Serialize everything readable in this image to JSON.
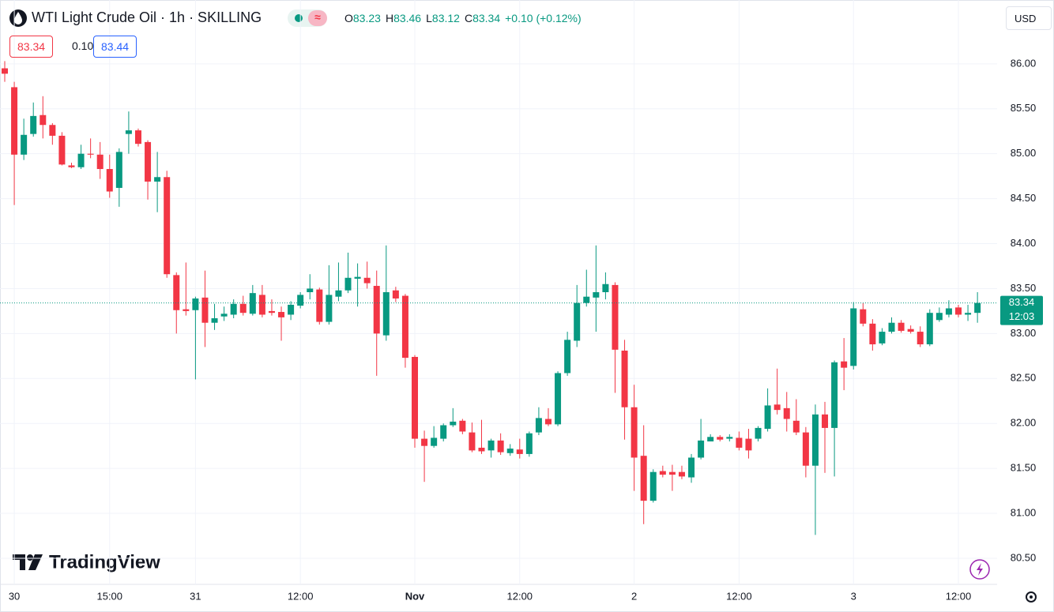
{
  "header": {
    "title": "WTI Light Crude Oil · 1h · SKILLING",
    "ohlc": [
      {
        "key": "O",
        "value": "83.23"
      },
      {
        "key": "H",
        "value": "83.46"
      },
      {
        "key": "L",
        "value": "83.12"
      },
      {
        "key": "C",
        "value": "83.34"
      }
    ],
    "change": "+0.10 (+0.12%)",
    "bid": "83.34",
    "spread": "0.10",
    "ask": "83.44",
    "currency": "USD"
  },
  "watermark": "TradingView",
  "chart_data": {
    "type": "candlestick",
    "up_color": "#089981",
    "down_color": "#f23645",
    "grid": true,
    "x": [
      null,
      "30",
      null,
      null,
      null,
      null,
      null,
      null,
      null,
      null,
      null,
      "15:00",
      null,
      null,
      null,
      null,
      null,
      null,
      null,
      null,
      "31",
      null,
      null,
      null,
      null,
      null,
      null,
      null,
      null,
      null,
      null,
      "12:00",
      null,
      null,
      null,
      null,
      null,
      null,
      null,
      null,
      null,
      null,
      null,
      "Nov",
      null,
      null,
      null,
      null,
      null,
      null,
      null,
      null,
      null,
      null,
      "12:00",
      null,
      null,
      null,
      null,
      null,
      null,
      null,
      null,
      null,
      null,
      null,
      "2",
      null,
      null,
      null,
      null,
      null,
      null,
      null,
      null,
      null,
      null,
      "12:00",
      null,
      null,
      null,
      null,
      null,
      null,
      null,
      null,
      null,
      null,
      null,
      "3",
      null,
      null,
      null,
      null,
      null,
      null,
      null,
      null,
      null,
      null,
      "12:00",
      null,
      null
    ],
    "open": [
      85.95,
      85.74,
      84.99,
      85.22,
      85.43,
      85.32,
      85.2,
      84.87,
      84.85,
      85.0,
      84.99,
      84.83,
      84.62,
      85.22,
      85.26,
      85.13,
      84.69,
      84.74,
      83.65,
      83.27,
      83.26,
      83.4,
      83.12,
      83.19,
      83.21,
      83.33,
      83.22,
      83.43,
      83.25,
      83.24,
      83.21,
      83.31,
      83.46,
      83.49,
      83.13,
      83.41,
      83.48,
      83.61,
      83.62,
      83.53,
      82.98,
      83.48,
      83.42,
      82.74,
      81.83,
      81.75,
      81.83,
      81.98,
      82.03,
      81.9,
      81.73,
      81.7,
      81.81,
      81.67,
      81.71,
      81.66,
      81.9,
      82.05,
      81.99,
      82.56,
      82.92,
      83.34,
      83.4,
      83.46,
      83.54,
      82.81,
      82.18,
      81.64,
      81.14,
      81.47,
      81.46,
      81.46,
      81.4,
      81.62,
      81.8,
      81.85,
      81.83,
      81.84,
      81.83,
      81.83,
      81.94,
      82.21,
      82.17,
      82.03,
      81.9,
      81.53,
      82.1,
      81.95,
      82.69,
      82.64,
      83.27,
      83.11,
      82.89,
      83.02,
      83.12,
      83.05,
      83.02,
      82.88,
      83.15,
      83.21,
      83.29,
      83.21,
      83.23
    ],
    "high": [
      86.03,
      85.8,
      85.39,
      85.57,
      85.64,
      85.34,
      85.24,
      84.9,
      85.1,
      85.17,
      85.13,
      84.99,
      85.06,
      85.47,
      85.28,
      85.15,
      85.02,
      84.81,
      83.68,
      83.79,
      83.41,
      83.7,
      83.33,
      83.3,
      83.38,
      83.42,
      83.54,
      83.54,
      83.38,
      83.3,
      83.36,
      83.46,
      83.66,
      83.51,
      83.76,
      83.79,
      83.9,
      83.78,
      83.8,
      83.7,
      83.98,
      83.52,
      83.44,
      82.76,
      81.92,
      81.97,
      82.0,
      82.17,
      82.05,
      82.01,
      82.04,
      81.83,
      81.89,
      81.77,
      81.83,
      81.91,
      82.18,
      82.17,
      82.58,
      83.02,
      83.54,
      83.71,
      83.98,
      83.68,
      83.57,
      82.93,
      82.43,
      81.98,
      81.49,
      81.53,
      81.54,
      81.53,
      81.66,
      82.05,
      81.88,
      81.87,
      81.88,
      81.91,
      81.94,
      81.97,
      82.39,
      82.61,
      82.35,
      82.27,
      81.96,
      82.21,
      82.24,
      82.7,
      82.95,
      83.35,
      83.34,
      83.16,
      83.06,
      83.18,
      83.15,
      83.09,
      83.08,
      83.27,
      83.29,
      83.37,
      83.32,
      83.32,
      83.46
    ],
    "low": [
      85.8,
      84.43,
      84.93,
      85.19,
      85.17,
      85.1,
      84.87,
      84.84,
      84.83,
      84.95,
      84.72,
      84.51,
      84.41,
      85.0,
      85.08,
      84.49,
      84.35,
      83.62,
      83.0,
      83.2,
      82.49,
      82.85,
      83.04,
      83.14,
      83.17,
      83.2,
      83.2,
      83.18,
      83.2,
      82.92,
      83.15,
      83.28,
      83.38,
      83.1,
      83.1,
      83.36,
      83.45,
      83.3,
      83.5,
      82.53,
      82.92,
      83.35,
      82.62,
      81.73,
      81.35,
      81.73,
      81.8,
      81.96,
      81.88,
      81.68,
      81.66,
      81.62,
      81.65,
      81.64,
      81.61,
      81.63,
      81.87,
      81.97,
      81.97,
      82.53,
      82.85,
      83.3,
      83.02,
      83.38,
      82.34,
      81.82,
      81.25,
      80.88,
      81.12,
      81.4,
      81.25,
      81.38,
      81.34,
      81.6,
      81.8,
      81.8,
      81.8,
      81.7,
      81.61,
      81.8,
      81.91,
      82.1,
      81.91,
      81.87,
      81.4,
      80.76,
      81.45,
      81.41,
      82.37,
      82.6,
      83.08,
      82.81,
      82.87,
      83.0,
      83.01,
      83.0,
      82.85,
      82.86,
      83.13,
      83.18,
      83.18,
      83.14,
      83.12
    ],
    "close": [
      85.89,
      84.99,
      85.21,
      85.42,
      85.32,
      85.2,
      84.88,
      84.85,
      85.0,
      84.99,
      84.83,
      84.58,
      85.02,
      85.26,
      85.11,
      84.69,
      84.74,
      83.66,
      83.26,
      83.25,
      83.39,
      83.12,
      83.17,
      83.22,
      83.33,
      83.23,
      83.45,
      83.21,
      83.23,
      83.18,
      83.32,
      83.43,
      83.5,
      83.13,
      83.43,
      83.48,
      83.62,
      83.63,
      83.56,
      83.0,
      83.46,
      83.39,
      82.73,
      81.83,
      81.75,
      81.84,
      81.98,
      82.02,
      81.91,
      81.7,
      81.69,
      81.81,
      81.68,
      81.72,
      81.66,
      81.89,
      82.06,
      81.99,
      82.56,
      82.93,
      83.34,
      83.41,
      83.46,
      83.55,
      82.82,
      82.18,
      81.62,
      81.14,
      81.46,
      81.43,
      81.43,
      81.41,
      81.62,
      81.81,
      81.85,
      81.82,
      81.85,
      81.73,
      81.7,
      81.95,
      82.2,
      82.15,
      82.05,
      81.9,
      81.53,
      82.1,
      81.95,
      82.68,
      82.62,
      83.28,
      83.11,
      82.88,
      83.02,
      83.12,
      83.03,
      83.02,
      82.88,
      83.23,
      83.23,
      83.28,
      83.21,
      83.23,
      83.34
    ],
    "ylim": [
      80.21,
      86.71
    ],
    "yticks": [
      {
        "value": 80.5,
        "label": "80.50"
      },
      {
        "value": 81,
        "label": "81.00"
      },
      {
        "value": 81.5,
        "label": "81.50"
      },
      {
        "value": 82,
        "label": "82.00"
      },
      {
        "value": 82.5,
        "label": "82.50"
      },
      {
        "value": 83,
        "label": "83.00"
      },
      {
        "value": 83.5,
        "label": "83.50"
      },
      {
        "value": 84,
        "label": "84.00"
      },
      {
        "value": 84.5,
        "label": "84.50"
      },
      {
        "value": 85,
        "label": "85.00"
      },
      {
        "value": 85.5,
        "label": "85.50"
      },
      {
        "value": 86,
        "label": "86.00"
      }
    ],
    "last_price": 83.34,
    "countdown": "12:03"
  }
}
